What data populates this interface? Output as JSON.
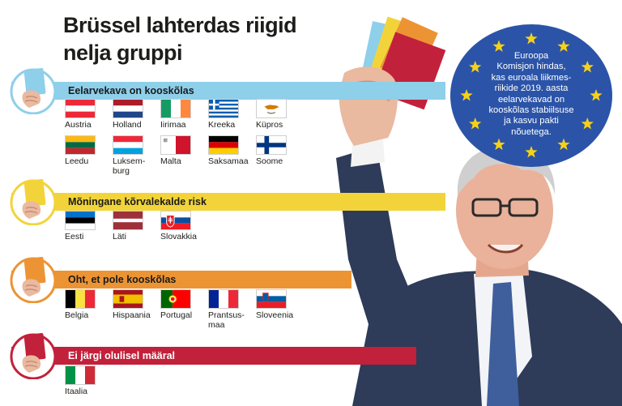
{
  "title": {
    "line1": "Brüssel lahterdas riigid",
    "line2": "nelja gruppi"
  },
  "eu_info": {
    "text": "Euroopa\nKomisjon hindas,\nkas euroala liikmes-\nriikide 2019. aasta\neelarvekavad on\nkooskõlas stabiilsuse\nja kasvu pakti\nnõuetega."
  },
  "groups": [
    {
      "label": "Eelarvekava on kooskõlas",
      "color": "#8ecfea",
      "card_color": "#8ecfea",
      "countries": [
        {
          "name": "Austria",
          "flag": "austria"
        },
        {
          "name": "Holland",
          "flag": "netherlands"
        },
        {
          "name": "Iirimaa",
          "flag": "ireland"
        },
        {
          "name": "Kreeka",
          "flag": "greece"
        },
        {
          "name": "Küpros",
          "flag": "cyprus"
        },
        {
          "name": "Leedu",
          "flag": "lithuania"
        },
        {
          "name": "Luksem-\nburg",
          "flag": "luxembourg"
        },
        {
          "name": "Malta",
          "flag": "malta"
        },
        {
          "name": "Saksamaa",
          "flag": "germany"
        },
        {
          "name": "Soome",
          "flag": "finland"
        }
      ]
    },
    {
      "label": "Mõningane kõrvalekalde risk",
      "color": "#f2d43a",
      "card_color": "#f2d43a",
      "countries": [
        {
          "name": "Eesti",
          "flag": "estonia"
        },
        {
          "name": "Läti",
          "flag": "latvia"
        },
        {
          "name": "Slovakkia",
          "flag": "slovakia"
        }
      ]
    },
    {
      "label": "Oht, et pole kooskõlas",
      "color": "#ec9434",
      "card_color": "#ec9434",
      "countries": [
        {
          "name": "Belgia",
          "flag": "belgium"
        },
        {
          "name": "Hispaania",
          "flag": "spain"
        },
        {
          "name": "Portugal",
          "flag": "portugal"
        },
        {
          "name": "Prantsus-\nmaa",
          "flag": "france"
        },
        {
          "name": "Sloveenia",
          "flag": "slovenia"
        }
      ]
    },
    {
      "label": "Ei järgi olulisel määral",
      "color": "#c2213b",
      "card_color": "#c2213b",
      "countries": [
        {
          "name": "Itaalia",
          "flag": "italy"
        }
      ]
    }
  ]
}
